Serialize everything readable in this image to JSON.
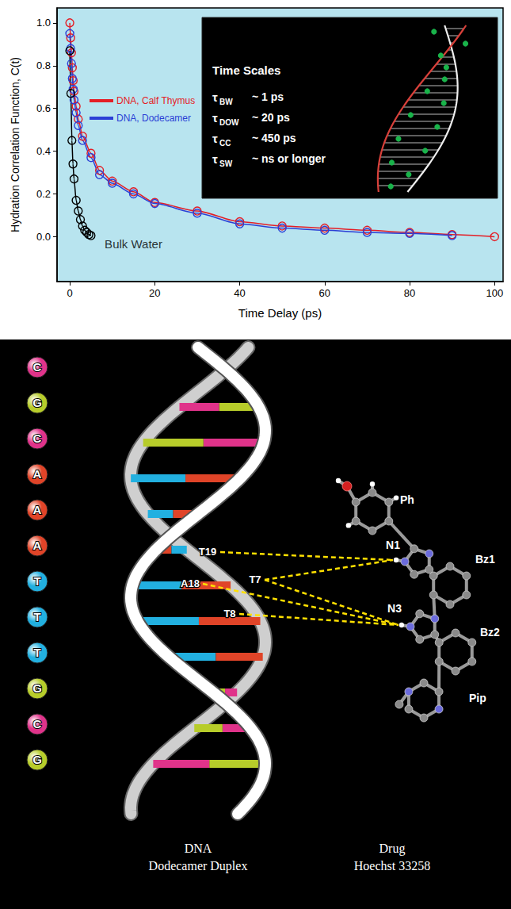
{
  "chart_data": {
    "type": "line",
    "xlabel": "Time Delay (ps)",
    "ylabel": "Hydration Correlation Function, C(t)",
    "xlim": [
      -3,
      102
    ],
    "ylim": [
      -0.21,
      1.07
    ],
    "xticks": [
      0,
      20,
      40,
      60,
      80,
      100
    ],
    "yticks": [
      {
        "value": 0,
        "label": "0.0"
      },
      {
        "value": 0.2,
        "label": "0.2"
      },
      {
        "value": 0.4,
        "label": "0.4"
      },
      {
        "value": 0.6,
        "label": "0.6"
      },
      {
        "value": 0.8,
        "label": "0.8"
      },
      {
        "value": 1,
        "label": "1.0"
      }
    ],
    "grid": false,
    "legend": "left",
    "marker": "emptyCircle",
    "line_style": "solid",
    "series": [
      {
        "name": "DNA, Calf Thymus",
        "color": "#e41e26",
        "x": [
          0,
          0.2,
          0.4,
          0.6,
          0.8,
          1,
          1.5,
          2,
          3,
          5,
          7,
          10,
          15,
          20,
          30,
          40,
          50,
          60,
          70,
          80,
          90,
          100
        ],
        "values": [
          1.0,
          0.93,
          0.86,
          0.79,
          0.73,
          0.68,
          0.61,
          0.55,
          0.47,
          0.39,
          0.31,
          0.26,
          0.21,
          0.16,
          0.12,
          0.07,
          0.05,
          0.04,
          0.03,
          0.02,
          0.01,
          0.0
        ]
      },
      {
        "name": "DNA, Dodecamer",
        "color": "#2b3fd6",
        "x": [
          0,
          0.2,
          0.4,
          0.6,
          0.8,
          1,
          1.5,
          2,
          3,
          5,
          7,
          10,
          15,
          20,
          30,
          40,
          50,
          60,
          70,
          80,
          90
        ],
        "values": [
          0.95,
          0.88,
          0.81,
          0.74,
          0.69,
          0.64,
          0.58,
          0.52,
          0.45,
          0.37,
          0.29,
          0.25,
          0.2,
          0.155,
          0.11,
          0.06,
          0.04,
          0.03,
          0.02,
          0.015,
          0.005
        ]
      },
      {
        "color": "#000000",
        "x": [
          0,
          0.25,
          0.5,
          0.75,
          1,
          1.5,
          2,
          2.5,
          3,
          3.5,
          4,
          4.5,
          5
        ],
        "values": [
          0.87,
          0.67,
          0.45,
          0.34,
          0.27,
          0.17,
          0.12,
          0.08,
          0.05,
          0.03,
          0.02,
          0.01,
          0.005
        ]
      }
    ],
    "annotations": [
      {
        "text": "Bulk Water",
        "x": 15,
        "y": -0.035
      }
    ]
  },
  "inset": {
    "title": "Time Scales",
    "items": [
      {
        "symbol": "τ",
        "subscript": "BW",
        "text": "~ 1 ps"
      },
      {
        "symbol": "τ",
        "subscript": "DOW",
        "text": "~ 20 ps"
      },
      {
        "symbol": "τ",
        "subscript": "CC",
        "text": "~ 450 ps"
      },
      {
        "symbol": "τ",
        "subscript": "SW",
        "text": "~ ns or longer"
      }
    ]
  },
  "diagram": {
    "sequence": [
      {
        "base": "C",
        "color": "#e0338a"
      },
      {
        "base": "G",
        "color": "#b7cc2a"
      },
      {
        "base": "C",
        "color": "#e0338a"
      },
      {
        "base": "A",
        "color": "#e04428"
      },
      {
        "base": "A",
        "color": "#e04428"
      },
      {
        "base": "A",
        "color": "#e04428"
      },
      {
        "base": "T",
        "color": "#22b0e0"
      },
      {
        "base": "T",
        "color": "#22b0e0"
      },
      {
        "base": "T",
        "color": "#22b0e0"
      },
      {
        "base": "G",
        "color": "#b7cc2a"
      },
      {
        "base": "C",
        "color": "#e0338a"
      },
      {
        "base": "G",
        "color": "#b7cc2a"
      }
    ],
    "base_labels": [
      "T19",
      "A18",
      "T7",
      "T8"
    ],
    "drug_labels": [
      "Ph",
      "Bz1",
      "N1",
      "N3",
      "Bz2",
      "Pip"
    ],
    "contacts": [
      [
        "T19",
        "N1"
      ],
      [
        "T7",
        "N1"
      ],
      [
        "A18",
        "N3"
      ],
      [
        "T7",
        "N3"
      ],
      [
        "T8",
        "N3"
      ]
    ],
    "captions": [
      [
        "DNA",
        "Dodecamer Duplex"
      ],
      [
        "Drug",
        "Hoechst 33258"
      ]
    ]
  }
}
